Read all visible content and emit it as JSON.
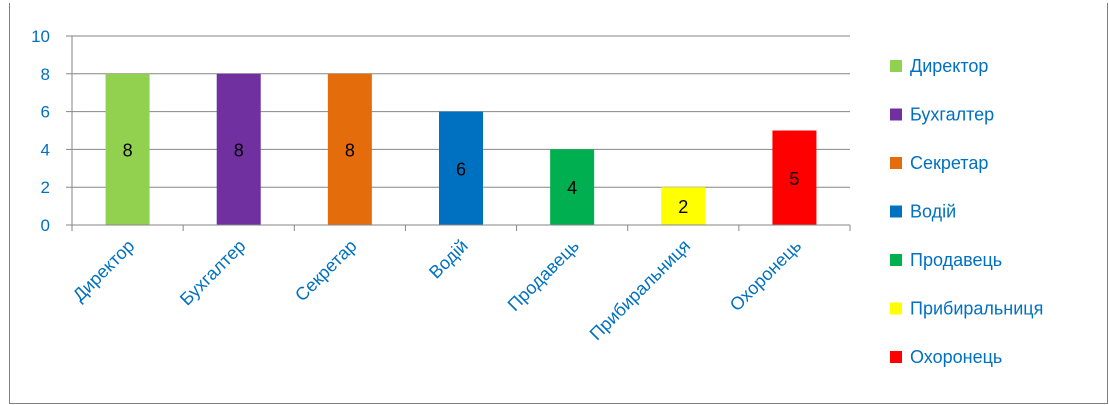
{
  "chart_data": {
    "type": "bar",
    "categories": [
      "Директор",
      "Бухгалтер",
      "Секретар",
      "Водій",
      "Продавець",
      "Прибиральниця",
      "Охоронець"
    ],
    "values": [
      8,
      8,
      8,
      6,
      4,
      2,
      5
    ],
    "colors": [
      "#92d050",
      "#7030a0",
      "#e46c0a",
      "#0070c0",
      "#00b050",
      "#ffff00",
      "#ff0000"
    ],
    "yticks": [
      0,
      2,
      4,
      6,
      8,
      10
    ],
    "ylim": [
      0,
      10
    ],
    "grid": true,
    "legend_position": "right",
    "data_labels": true,
    "title": "",
    "xlabel": "",
    "ylabel": "",
    "tick_color": "#0070c0",
    "grid_color": "#868686"
  }
}
